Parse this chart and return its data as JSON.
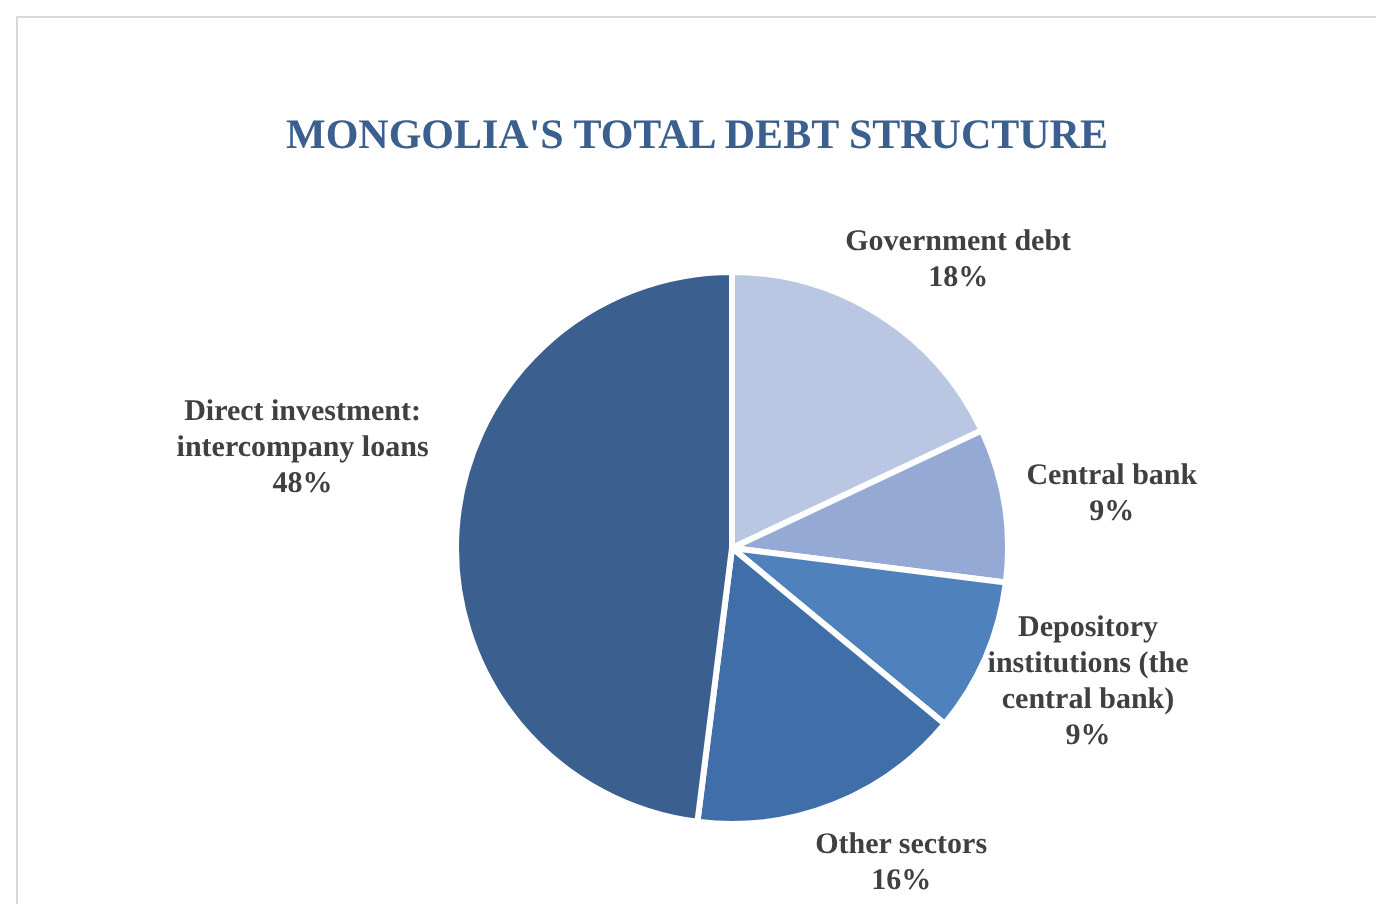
{
  "chart_data": {
    "type": "pie",
    "title": "MONGOLIA'S TOTAL DEBT STRUCTURE",
    "categories": [
      "Government debt",
      "Central bank",
      "Depository institutions (the central bank)",
      "Other sectors",
      "Direct investment: intercompany loans"
    ],
    "values": [
      18,
      9,
      9,
      16,
      48
    ],
    "value_labels": [
      "18%",
      "9%",
      "9%",
      "16%",
      "48%"
    ],
    "colors": [
      "#b9c7e2",
      "#94a9d3",
      "#4f81bd",
      "#3f6ea8",
      "#3b5f8e"
    ],
    "legend": false
  }
}
